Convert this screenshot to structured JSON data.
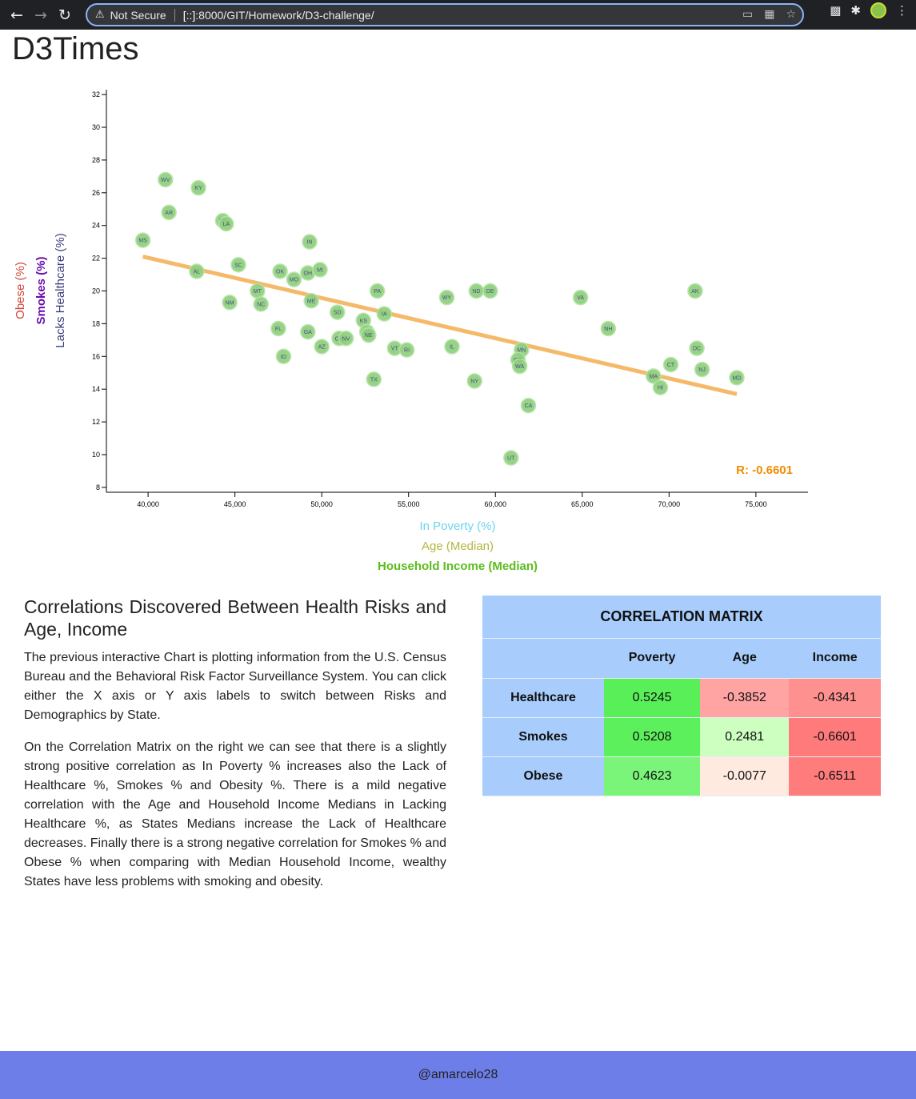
{
  "browser": {
    "security_label": "Not Secure",
    "url_host": "[::]",
    "url_rest": ":8000/GIT/Homework/D3-challenge/"
  },
  "page": {
    "title": "D3Times",
    "footer": "@amarcelo28"
  },
  "chart_data": {
    "type": "scatter",
    "x_axis_labels": [
      {
        "text": "In Poverty (%)",
        "color": "#6ed3f0",
        "active": false
      },
      {
        "text": "Age (Median)",
        "color": "#b5b542",
        "active": false
      },
      {
        "text": "Household Income (Median)",
        "color": "#5bbd1c",
        "active": true
      }
    ],
    "y_axis_labels": [
      {
        "text": "Lacks Healthcare (%)",
        "color": "#3b3b7a",
        "active": false
      },
      {
        "text": "Smokes (%)",
        "color": "#6a0dad",
        "active": true
      },
      {
        "text": "Obese (%)",
        "color": "#d2453a",
        "active": false
      }
    ],
    "xlim": [
      37600,
      78000
    ],
    "ylim": [
      7.7,
      32.3
    ],
    "x_ticks": [
      40000,
      45000,
      50000,
      55000,
      60000,
      65000,
      70000,
      75000
    ],
    "x_tick_labels": [
      "40,000",
      "45,000",
      "50,000",
      "55,000",
      "60,000",
      "65,000",
      "70,000",
      "75,000"
    ],
    "y_ticks": [
      8,
      10,
      12,
      14,
      16,
      18,
      20,
      22,
      24,
      26,
      28,
      30,
      32
    ],
    "y_tick_labels": [
      "8",
      "10",
      "12",
      "14",
      "16",
      "18",
      "20",
      "22",
      "24",
      "26",
      "28",
      "30",
      "32"
    ],
    "points": [
      {
        "state": "WV",
        "x": 41000,
        "y": 26.8
      },
      {
        "state": "KY",
        "x": 42900,
        "y": 26.3
      },
      {
        "state": "AR",
        "x": 41200,
        "y": 24.8
      },
      {
        "state": "TN",
        "x": 44300,
        "y": 24.3
      },
      {
        "state": "LA",
        "x": 44500,
        "y": 24.1
      },
      {
        "state": "MS",
        "x": 39700,
        "y": 23.1
      },
      {
        "state": "IN",
        "x": 49300,
        "y": 23.0
      },
      {
        "state": "AL",
        "x": 42800,
        "y": 21.2
      },
      {
        "state": "SC",
        "x": 45200,
        "y": 21.6
      },
      {
        "state": "OK",
        "x": 47600,
        "y": 21.2
      },
      {
        "state": "OH",
        "x": 49200,
        "y": 21.1
      },
      {
        "state": "MI",
        "x": 49900,
        "y": 21.3
      },
      {
        "state": "MO",
        "x": 48400,
        "y": 20.7
      },
      {
        "state": "MT",
        "x": 46300,
        "y": 20.0
      },
      {
        "state": "NM",
        "x": 44700,
        "y": 19.3
      },
      {
        "state": "NC",
        "x": 46500,
        "y": 19.2
      },
      {
        "state": "ME",
        "x": 49400,
        "y": 19.4
      },
      {
        "state": "PA",
        "x": 53200,
        "y": 20.0
      },
      {
        "state": "WY",
        "x": 57200,
        "y": 19.6
      },
      {
        "state": "ND",
        "x": 58900,
        "y": 20.0
      },
      {
        "state": "DE",
        "x": 59700,
        "y": 20.0
      },
      {
        "state": "VA",
        "x": 64900,
        "y": 19.6
      },
      {
        "state": "AK",
        "x": 71500,
        "y": 20.0
      },
      {
        "state": "SD",
        "x": 50900,
        "y": 18.7
      },
      {
        "state": "IA",
        "x": 53600,
        "y": 18.6
      },
      {
        "state": "KS",
        "x": 52400,
        "y": 18.2
      },
      {
        "state": "FL",
        "x": 47500,
        "y": 17.7
      },
      {
        "state": "GA",
        "x": 49200,
        "y": 17.5
      },
      {
        "state": "OR",
        "x": 51000,
        "y": 17.1
      },
      {
        "state": "NV",
        "x": 51400,
        "y": 17.1
      },
      {
        "state": "WI",
        "x": 52600,
        "y": 17.5
      },
      {
        "state": "NE",
        "x": 52700,
        "y": 17.3
      },
      {
        "state": "AZ",
        "x": 50000,
        "y": 16.6
      },
      {
        "state": "VT",
        "x": 54200,
        "y": 16.5
      },
      {
        "state": "RI",
        "x": 54900,
        "y": 16.4
      },
      {
        "state": "IL",
        "x": 57500,
        "y": 16.6
      },
      {
        "state": "NH",
        "x": 66500,
        "y": 17.7
      },
      {
        "state": "MN",
        "x": 61500,
        "y": 16.4
      },
      {
        "state": "DC",
        "x": 71600,
        "y": 16.5
      },
      {
        "state": "ID",
        "x": 47800,
        "y": 16.0
      },
      {
        "state": "CO",
        "x": 61300,
        "y": 15.8
      },
      {
        "state": "WA",
        "x": 61400,
        "y": 15.4
      },
      {
        "state": "CT",
        "x": 70100,
        "y": 15.5
      },
      {
        "state": "NJ",
        "x": 71900,
        "y": 15.2
      },
      {
        "state": "MA",
        "x": 69100,
        "y": 14.8
      },
      {
        "state": "MD",
        "x": 73900,
        "y": 14.7
      },
      {
        "state": "TX",
        "x": 53000,
        "y": 14.6
      },
      {
        "state": "NY",
        "x": 58800,
        "y": 14.5
      },
      {
        "state": "HI",
        "x": 69500,
        "y": 14.1
      },
      {
        "state": "CA",
        "x": 61900,
        "y": 13.0
      },
      {
        "state": "UT",
        "x": 60900,
        "y": 9.8
      }
    ],
    "trendline": {
      "x": [
        39700,
        73900
      ],
      "y": [
        22.1,
        13.7
      ],
      "color": "#f5b663"
    },
    "r_label": "R: -0.6601",
    "r_color": "#f28c00",
    "point_fill": "#8ed07c",
    "point_stroke": "#b6e3a8",
    "point_text_color": "#4a4a8a"
  },
  "content": {
    "heading": "Correlations Discovered Between Health Risks and Age, Income",
    "paragraph1": "The previous interactive Chart is plotting information from the U.S. Census Bureau and the Behavioral Risk Factor Surveillance System. You can click either the X axis or Y axis labels to switch between Risks and Demographics by State.",
    "paragraph2": "On the Correlation Matrix on the right we can see that there is a slightly strong positive correlation as In Poverty % increases also the Lack of Healthcare %, Smokes % and Obesity %. There is a mild negative correlation with the Age and Household Income Medians in Lacking Healthcare %, as States Medians increase the Lack of Healthcare decreases. Finally there is a strong negative correlation for Smokes % and Obese % when comparing with Median Household Income, wealthy States have less problems with smoking and obesity."
  },
  "matrix": {
    "title": "CORRELATION MATRIX",
    "columns": [
      "Poverty",
      "Age",
      "Income"
    ],
    "rows": [
      {
        "label": "Healthcare",
        "values": [
          "0.5245",
          "-0.3852",
          "-0.4341"
        ],
        "colors": [
          "#59ef59",
          "#ffa3a3",
          "#ff9090"
        ]
      },
      {
        "label": "Smokes",
        "values": [
          "0.5208",
          "0.2481",
          "-0.6601"
        ],
        "colors": [
          "#5cf05c",
          "#ccffc0",
          "#ff7a7a"
        ]
      },
      {
        "label": "Obese",
        "values": [
          "0.4623",
          "-0.0077",
          "-0.6511"
        ],
        "colors": [
          "#7af57a",
          "#ffeadf",
          "#ff7c7c"
        ]
      }
    ]
  }
}
